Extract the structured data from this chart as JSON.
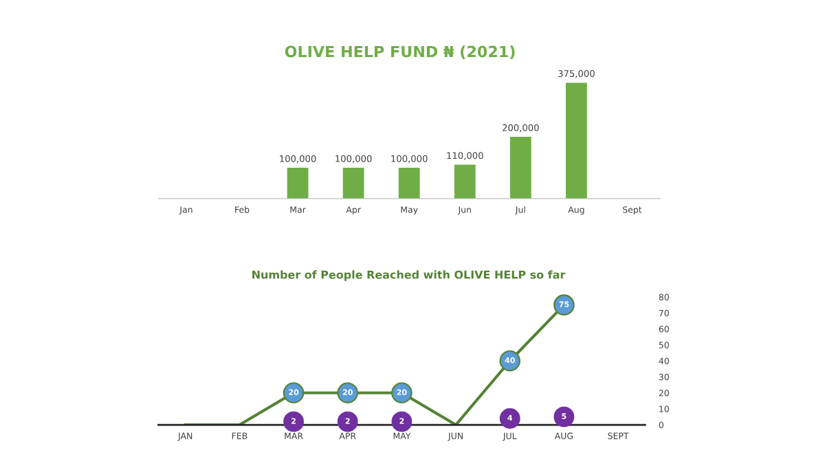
{
  "chart_data": [
    {
      "type": "bar",
      "title": "OLIVE HELP FUND ₦ (2021)",
      "categories": [
        "Jan",
        "Feb",
        "Mar",
        "Apr",
        "May",
        "Jun",
        "Jul",
        "Aug",
        "Sept"
      ],
      "values": [
        null,
        null,
        100000,
        100000,
        100000,
        110000,
        200000,
        375000,
        null
      ],
      "color": "#70ad47",
      "value_labels": [
        null,
        null,
        "100,000",
        "100,000",
        "100,000",
        "110,000",
        "200,000",
        "375,000",
        null
      ],
      "grid": false,
      "legend": false
    },
    {
      "type": "line",
      "title": "Number of People Reached with OLIVE HELP so far",
      "categories": [
        "JAN",
        "FEB",
        "MAR",
        "APR",
        "MAY",
        "JUN",
        "JUL",
        "AUG",
        "SEPT"
      ],
      "series": [
        {
          "type": "line",
          "color": "#548235",
          "values": [
            0,
            0,
            20,
            20,
            20,
            0,
            40,
            75,
            null
          ],
          "colors": [
            null,
            null,
            "#5b9bd5",
            "#5b9bd5",
            "#5b9bd5",
            null,
            "#5b9bd5",
            "#5b9bd5",
            null
          ],
          "value_labels": [
            null,
            null,
            "20",
            "20",
            "20",
            null,
            "40",
            "75",
            null
          ]
        },
        {
          "type": "scatter",
          "color": "#7030a0",
          "values": [
            null,
            null,
            2,
            2,
            2,
            null,
            4,
            5,
            null
          ],
          "value_labels": [
            null,
            null,
            "2",
            "2",
            "2",
            null,
            "4",
            "5",
            null
          ]
        }
      ],
      "ylim": [
        0,
        80
      ],
      "yticks": [
        0,
        10,
        20,
        30,
        40,
        50,
        60,
        70,
        80
      ],
      "marker": "circle",
      "grid": false,
      "legend": false
    }
  ]
}
